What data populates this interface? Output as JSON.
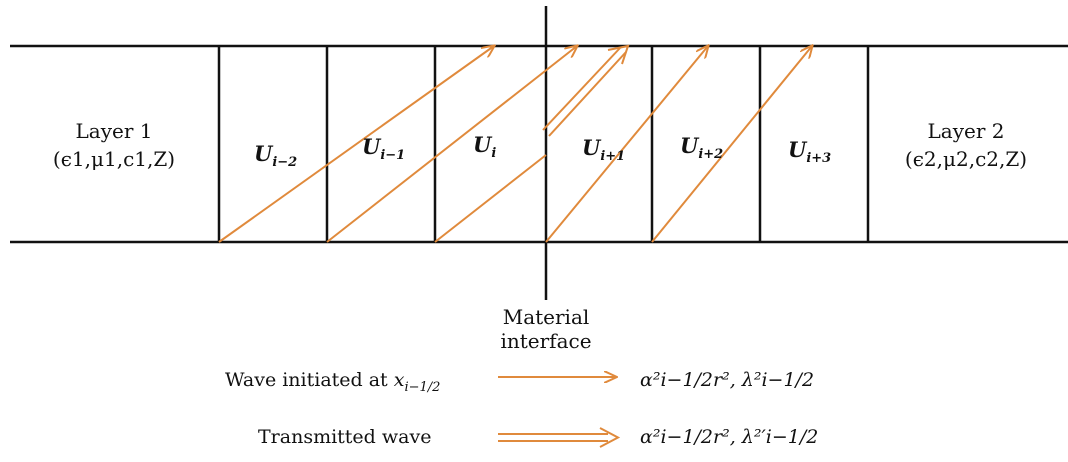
{
  "colors": {
    "line": "#111111",
    "arrow": "#e08a3c"
  },
  "layers": {
    "left": {
      "title": "Layer 1",
      "params": "(ϵ1,μ1,c1,Z)"
    },
    "right": {
      "title": "Layer 2",
      "params": "(ϵ2,μ2,c2,Z)"
    }
  },
  "cells": [
    {
      "base": "U",
      "sub": "i−2"
    },
    {
      "base": "U",
      "sub": "i−1"
    },
    {
      "base": "U",
      "sub": "i"
    },
    {
      "base": "U",
      "sub": "i+1"
    },
    {
      "base": "U",
      "sub": "i+2"
    },
    {
      "base": "U",
      "sub": "i+3"
    }
  ],
  "interface": {
    "line1": "Material",
    "line2": "interface"
  },
  "legend": [
    {
      "label": "Wave initiated at ",
      "label_math": "x",
      "label_sub": "i−1/2",
      "style": "single",
      "formula": "α²i−1/2r², λ²i−1/2"
    },
    {
      "label": "Transmitted wave",
      "style": "double",
      "formula": "α²i−1/2r², λ²′i−1/2"
    }
  ]
}
